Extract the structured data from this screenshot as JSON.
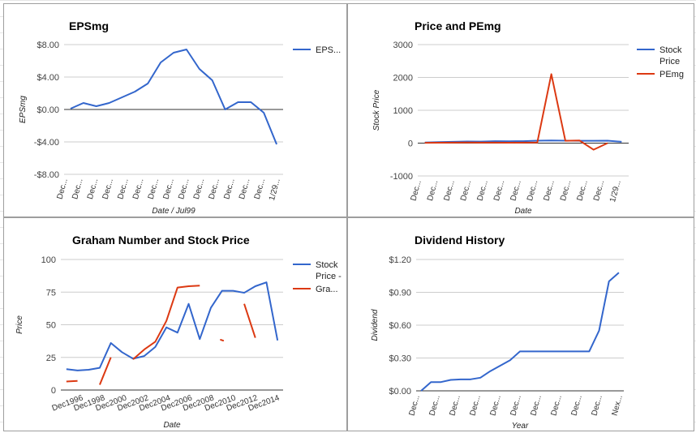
{
  "colors": {
    "blue": "#3366cc",
    "red": "#dc3912",
    "grid": "#cccccc",
    "axis": "#333333"
  },
  "chart_data": [
    {
      "type": "line",
      "title": "EPSmg",
      "xlabel": "Date / Jul99",
      "ylabel": "EPSmg",
      "ylim": [
        -8,
        8
      ],
      "yticks": [
        "$8.00",
        "$4.00",
        "$0.00",
        "-$4.00",
        "-$8.00"
      ],
      "ytick_values": [
        8,
        4,
        0,
        -4,
        -8
      ],
      "xtick_labels": [
        "Dec...",
        "Dec...",
        "Dec...",
        "Dec...",
        "Dec...",
        "Dec...",
        "Dec...",
        "Dec...",
        "Dec...",
        "Dec...",
        "Dec...",
        "Dec...",
        "Dec...",
        "Dec...",
        "1/29..."
      ],
      "legend": "right",
      "series": [
        {
          "name": "EPS...",
          "color": "blue",
          "values": [
            0.1,
            0.8,
            0.4,
            0.8,
            1.5,
            2.2,
            3.2,
            5.8,
            7.0,
            7.4,
            5.0,
            3.6,
            0.0,
            0.9,
            0.9,
            -0.4,
            -4.3
          ]
        }
      ]
    },
    {
      "type": "line",
      "title": "Price and PEmg",
      "xlabel": "Date",
      "ylabel": "Stock Price",
      "ylim": [
        -1000,
        3000
      ],
      "yticks": [
        "3000",
        "2000",
        "1000",
        "0",
        "-1000"
      ],
      "ytick_values": [
        3000,
        2000,
        1000,
        0,
        -1000
      ],
      "xtick_labels": [
        "Dec...",
        "Dec...",
        "Dec...",
        "Dec...",
        "Dec...",
        "Dec...",
        "Dec...",
        "Dec...",
        "Dec...",
        "Dec...",
        "Dec...",
        "Dec...",
        "1/29..."
      ],
      "legend": "right",
      "series": [
        {
          "name": "Stock Price",
          "color": "blue",
          "values": [
            20,
            30,
            40,
            50,
            45,
            60,
            55,
            60,
            75,
            80,
            75,
            70,
            70,
            75,
            40
          ]
        },
        {
          "name": "PEmg",
          "color": "red",
          "values": [
            10,
            12,
            15,
            18,
            14,
            16,
            13,
            15,
            18,
            2100,
            70,
            80,
            -200,
            0,
            null
          ]
        }
      ]
    },
    {
      "type": "line",
      "title": "Graham Number and Stock Price",
      "xlabel": "Date",
      "ylabel": "Price",
      "ylim": [
        0,
        100
      ],
      "yticks": [
        "100",
        "75",
        "50",
        "25",
        "0"
      ],
      "ytick_values": [
        100,
        75,
        50,
        25,
        0
      ],
      "xtick_labels": [
        "Dec1996",
        "Dec1998",
        "Dec2000",
        "Dec2002",
        "Dec2004",
        "Dec2006",
        "Dec2008",
        "Dec2010",
        "Dec2012",
        "Dec2014"
      ],
      "legend": "right",
      "series": [
        {
          "name": "Stock Price -",
          "color": "blue",
          "values": [
            16,
            15,
            15.5,
            17,
            36,
            29,
            24,
            26,
            33,
            48,
            44,
            66,
            39,
            63,
            76,
            76,
            74.5,
            79.5,
            82.5,
            38
          ]
        },
        {
          "name": "Gra...",
          "color": "red",
          "values": [
            6.5,
            7,
            null,
            4,
            25,
            null,
            23.5,
            31,
            37,
            53,
            78.5,
            79.5,
            80,
            null,
            38.5,
            null,
            66,
            40,
            null,
            null
          ]
        }
      ]
    },
    {
      "type": "line",
      "title": "Dividend History",
      "xlabel": "Year",
      "ylabel": "Dividend",
      "ylim": [
        0,
        1.2
      ],
      "yticks": [
        "$1.20",
        "$0.90",
        "$0.60",
        "$0.30",
        "$0.00"
      ],
      "ytick_values": [
        1.2,
        0.9,
        0.6,
        0.3,
        0
      ],
      "xtick_labels": [
        "Dec...",
        "Dec...",
        "Dec...",
        "Dec...",
        "Dec...",
        "Dec...",
        "Dec...",
        "Dec...",
        "Dec...",
        "Dec...",
        "Nex..."
      ],
      "series": [
        {
          "name": "Dividend",
          "color": "blue",
          "values": [
            0,
            0.08,
            0.08,
            0.1,
            0.105,
            0.105,
            0.12,
            0.18,
            0.23,
            0.28,
            0.36,
            0.36,
            0.36,
            0.36,
            0.36,
            0.36,
            0.36,
            0.36,
            0.55,
            1.0,
            1.08
          ]
        }
      ]
    }
  ]
}
